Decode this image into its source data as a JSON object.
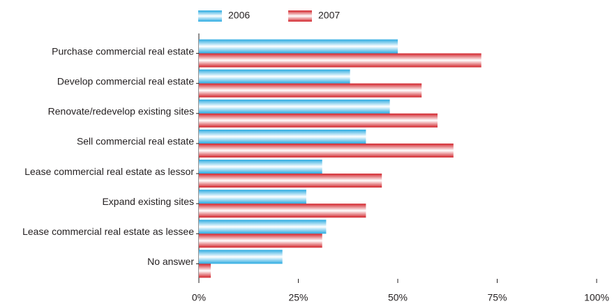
{
  "chart_data": {
    "type": "hbar",
    "categories": [
      "Purchase commercial real estate",
      "Develop commercial real estate",
      "Renovate/redevelop existing sites",
      "Sell commercial real estate",
      "Lease commercial real estate as lessor",
      "Expand existing sites",
      "Lease commercial real estate as lessee",
      "No answer"
    ],
    "series": [
      {
        "name": "2006",
        "color": "#29aae1",
        "values": [
          50,
          38,
          48,
          42,
          31,
          27,
          32,
          21
        ]
      },
      {
        "name": "2007",
        "color": "#d2232a",
        "values": [
          71,
          56,
          60,
          64,
          46,
          42,
          31,
          3
        ]
      }
    ],
    "xlim": [
      0,
      100
    ],
    "xticks": [
      {
        "value": 0,
        "label": "0%"
      },
      {
        "value": 25,
        "label": "25%"
      },
      {
        "value": 50,
        "label": "50%"
      },
      {
        "value": 75,
        "label": "75%"
      },
      {
        "value": 100,
        "label": "100%"
      }
    ],
    "legend": "top"
  }
}
